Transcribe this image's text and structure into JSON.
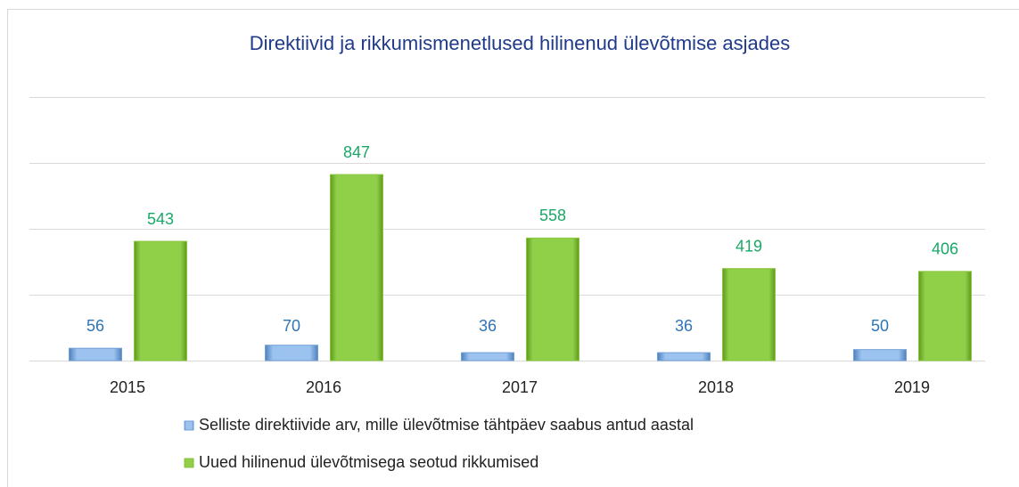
{
  "chart_data": {
    "type": "bar",
    "title": "Direktiivid ja rikkumismenetlused hilinenud ülevõtmise asjades",
    "categories": [
      "2015",
      "2016",
      "2017",
      "2018",
      "2019"
    ],
    "series": [
      {
        "name": "Selliste direktiivide arv, mille ülevõtmise tähtpäev saabus antud aastal",
        "color": "#6f9fd8",
        "label_color": "#2e75b6",
        "values": [
          56,
          70,
          36,
          36,
          50
        ]
      },
      {
        "name": "Uued hilinenud ülevõtmisega seotud rikkumised",
        "color": "#8cc63f",
        "label_color": "#1aa866",
        "values": [
          543,
          847,
          558,
          419,
          406
        ]
      }
    ],
    "ylim": [
      0,
      1200
    ],
    "yticks": [
      0,
      300,
      600,
      900,
      1200
    ],
    "grid": true
  }
}
